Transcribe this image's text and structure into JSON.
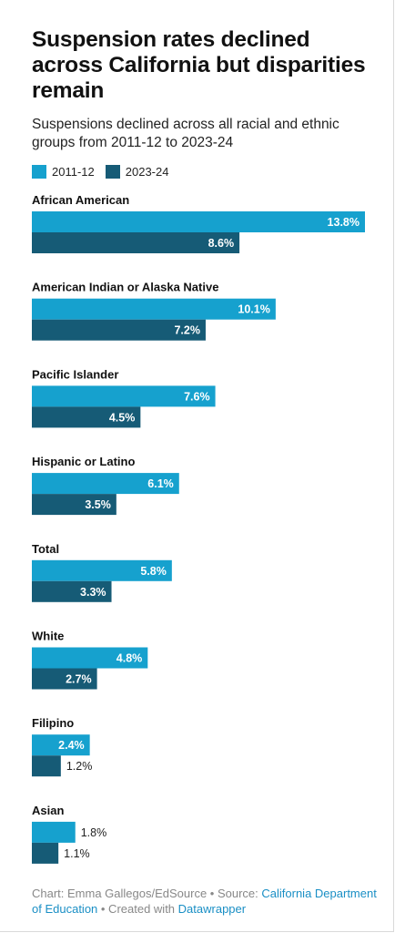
{
  "title": "Suspension rates declined across California but disparities remain",
  "subtitle": "Suspensions declined across all racial and ethnic groups from 2011-12 to 2023-24",
  "colors": {
    "series_2011": "#16a1ce",
    "series_2023": "#165b76",
    "text_dark": "#111111",
    "label_inside": "#ffffff",
    "label_outside": "#222222",
    "footer_text": "#888888",
    "footer_link": "#1a8fc5"
  },
  "chart_data": {
    "type": "bar",
    "orientation": "horizontal",
    "categories": [
      "African American",
      "American Indian or Alaska Native",
      "Pacific Islander",
      "Hispanic or Latino",
      "Total",
      "White",
      "Filipino",
      "Asian"
    ],
    "series": [
      {
        "name": "2011-12",
        "values": [
          13.8,
          10.1,
          7.6,
          6.1,
          5.8,
          4.8,
          2.4,
          1.8
        ],
        "labels": [
          "13.8%",
          "10.1%",
          "7.6%",
          "6.1%",
          "5.8%",
          "4.8%",
          "2.4%",
          "1.8%"
        ]
      },
      {
        "name": "2023-24",
        "values": [
          8.6,
          7.2,
          4.5,
          3.5,
          3.3,
          2.7,
          1.2,
          1.1
        ],
        "labels": [
          "8.6%",
          "7.2%",
          "4.5%",
          "3.5%",
          "3.3%",
          "2.7%",
          "1.2%",
          "1.1%"
        ]
      }
    ],
    "xlim": [
      0,
      13.8
    ],
    "grid": false,
    "legend_placement": "top-left"
  },
  "footer": {
    "chart_credit": "Chart: Emma Gallegos/EdSource • Source: ",
    "source_link": "California Department of Education",
    "created_text": " • Created with ",
    "created_link": "Datawrapper"
  }
}
